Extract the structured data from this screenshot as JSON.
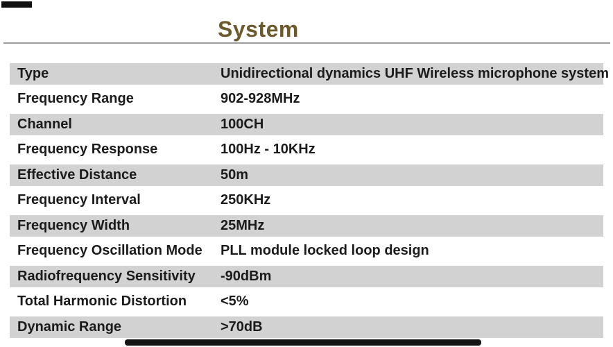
{
  "title": "System",
  "colors": {
    "title_accent": "#6d5a2c",
    "row_stripe": "#d2d2d2",
    "text": "#1b1b1b",
    "divider": "#9c9c9c"
  },
  "specs": {
    "rows": [
      {
        "label": "Type",
        "value": "Unidirectional dynamics UHF Wireless microphone system"
      },
      {
        "label": "Frequency Range",
        "value": "902-928MHz"
      },
      {
        "label": "Channel",
        "value": "100CH"
      },
      {
        "label": "Frequency Response",
        "value": "100Hz - 10KHz"
      },
      {
        "label": "Effective Distance",
        "value": "50m"
      },
      {
        "label": "Frequency Interval",
        "value": "250KHz"
      },
      {
        "label": "Frequency Width",
        "value": "25MHz"
      },
      {
        "label": "Frequency Oscillation Mode",
        "value": "PLL module locked loop design"
      },
      {
        "label": "Radiofrequency Sensitivity",
        "value": "-90dBm"
      },
      {
        "label": "Total Harmonic Distortion",
        "value": "<5%"
      },
      {
        "label": "Dynamic Range",
        "value": ">70dB"
      }
    ]
  }
}
